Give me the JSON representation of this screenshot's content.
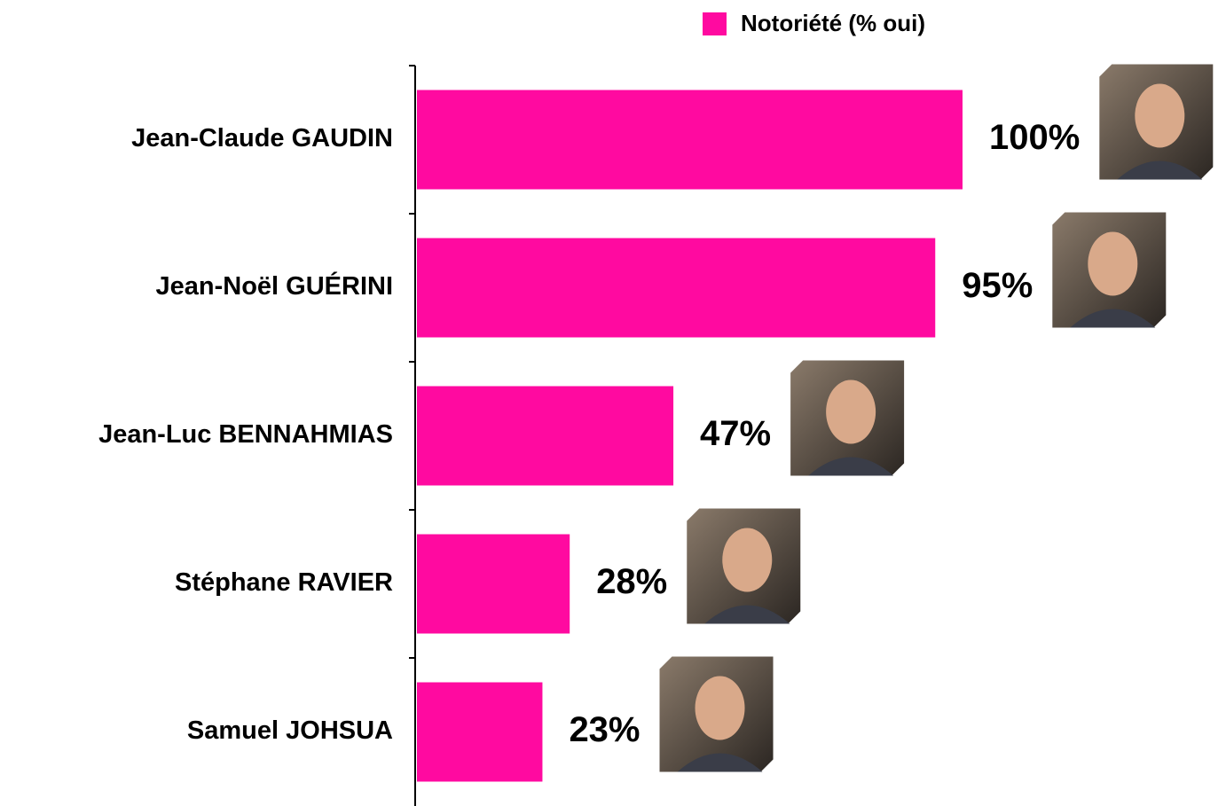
{
  "chart_data": {
    "type": "bar",
    "orientation": "horizontal",
    "categories": [
      "Jean-Claude GAUDIN",
      "Jean-Noël GUÉRINI",
      "Jean-Luc BENNAHMIAS",
      "Stéphane RAVIER",
      "Samuel JOHSUA"
    ],
    "series": [
      {
        "name": "Notoriété (% oui)",
        "color": "#ff0aa0",
        "values": [
          100,
          95,
          47,
          28,
          23
        ],
        "value_labels": [
          "100%",
          "95%",
          "47%",
          "28%",
          "23%"
        ]
      }
    ],
    "xlim": [
      0,
      100
    ],
    "legend": "top"
  }
}
